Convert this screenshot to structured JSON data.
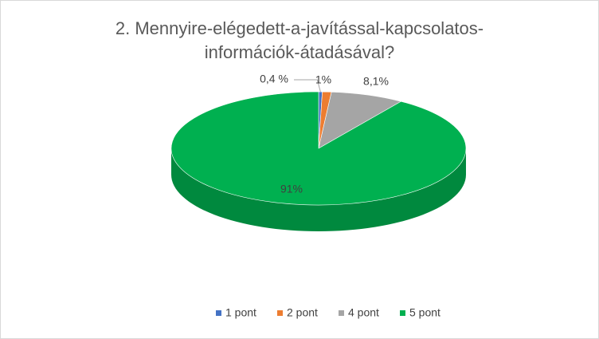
{
  "chart_data": {
    "type": "pie3d",
    "title": "2. Mennyire-elégedett-a-javítással-kapcsolatos-információk-átadásával?",
    "categories": [
      "1 pont",
      "2 pont",
      "4 pont",
      "5 pont"
    ],
    "values": [
      0.4,
      1,
      8.1,
      91
    ],
    "value_labels": [
      "0,4 %",
      "1%",
      "8,1%",
      "91%"
    ],
    "colors": [
      "#4472c4",
      "#ed7d31",
      "#a5a5a5",
      "#00b050"
    ],
    "legend": "bottom"
  }
}
